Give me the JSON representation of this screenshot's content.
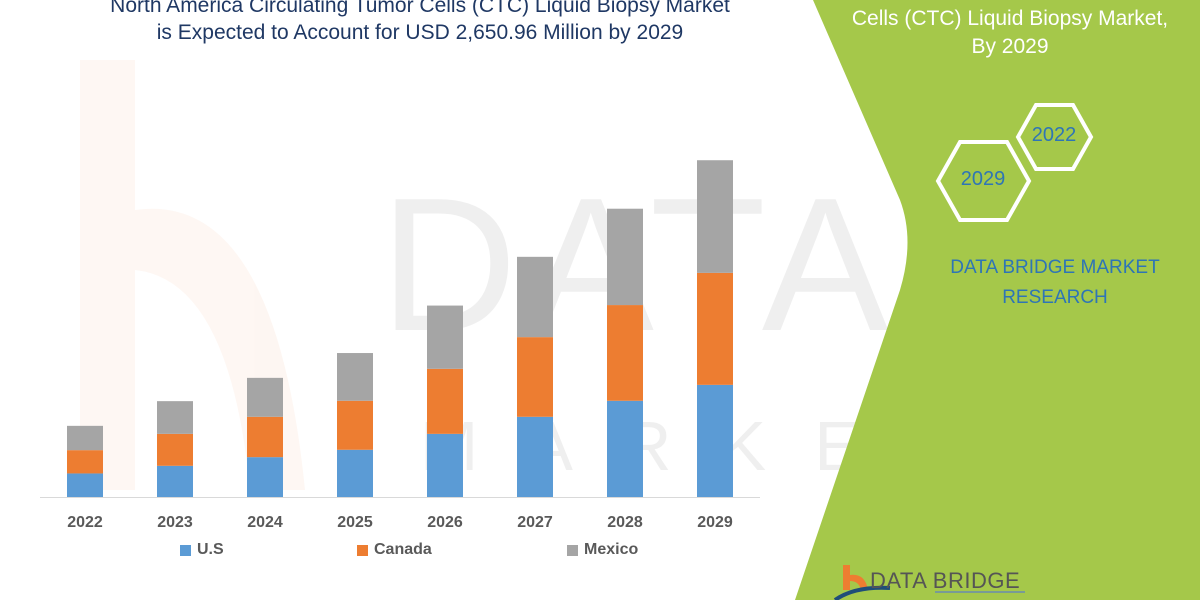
{
  "header": {
    "title_line1": "North America Circulating Tumor Cells (CTC) Liquid Biopsy Market",
    "title_line2": "is Expected to Account for USD 2,650.96 Million by 2029"
  },
  "side_panel": {
    "title_line1": "Cells (CTC) Liquid Biopsy Market,",
    "title_line2": "By 2029",
    "hex_years": [
      "2022",
      "2029"
    ],
    "brand_line1": "DATA BRIDGE MARKET",
    "brand_line2": "RESEARCH",
    "logo_text": "DATA BRIDGE",
    "panel_color": "#a5c84a"
  },
  "chart_data": {
    "type": "bar",
    "stacked": true,
    "categories": [
      "2022",
      "2023",
      "2024",
      "2025",
      "2026",
      "2027",
      "2028",
      "2029"
    ],
    "series": [
      {
        "name": "U.S",
        "color": "#5b9bd5",
        "values": [
          189,
          249,
          317,
          375,
          500,
          634,
          760,
          885
        ]
      },
      {
        "name": "Canada",
        "color": "#ed7d31",
        "values": [
          183,
          251,
          317,
          385,
          511,
          626,
          752,
          880
        ]
      },
      {
        "name": "Mexico",
        "color": "#a5a5a5",
        "values": [
          191,
          257,
          306,
          375,
          497,
          631,
          757,
          885
        ]
      }
    ],
    "ylim": [
      0,
      2800
    ],
    "grid": false,
    "y_axis_visible": false,
    "legend_placement": "bottom"
  }
}
